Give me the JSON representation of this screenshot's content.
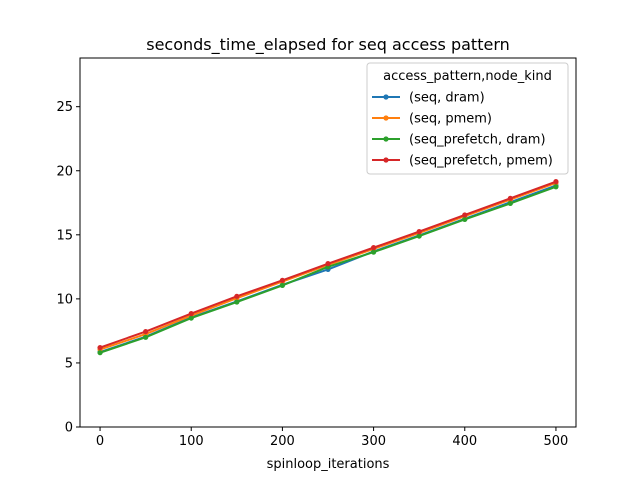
{
  "chart_data": {
    "type": "line",
    "title": "seconds_time_elapsed for seq access pattern",
    "xlabel": "spinloop_iterations",
    "ylabel": "",
    "xlim": [
      -22,
      522
    ],
    "ylim": [
      0,
      28.8
    ],
    "xticks": [
      0,
      100,
      200,
      300,
      400,
      500
    ],
    "yticks": [
      0,
      5,
      10,
      15,
      20,
      25
    ],
    "x": [
      0,
      50,
      100,
      150,
      200,
      250,
      300,
      350,
      400,
      450,
      500
    ],
    "legend": {
      "title": "access_pattern,node_kind",
      "placement": "upper right"
    },
    "series": [
      {
        "name": "(seq, dram)",
        "color": "#1f77b4",
        "values": [
          5.85,
          7.05,
          8.55,
          9.8,
          11.1,
          12.3,
          13.7,
          14.95,
          16.25,
          17.55,
          18.85
        ]
      },
      {
        "name": "(seq, pmem)",
        "color": "#ff7f0e",
        "values": [
          6.05,
          7.25,
          8.7,
          10.05,
          11.35,
          12.65,
          13.9,
          15.15,
          16.45,
          17.75,
          19.05
        ]
      },
      {
        "name": "(seq_prefetch, dram)",
        "color": "#2ca02c",
        "values": [
          5.8,
          7.0,
          8.5,
          9.75,
          11.05,
          12.5,
          13.65,
          14.9,
          16.2,
          17.45,
          18.75
        ]
      },
      {
        "name": "(seq_prefetch, pmem)",
        "color": "#d62728",
        "values": [
          6.2,
          7.45,
          8.85,
          10.2,
          11.45,
          12.75,
          14.0,
          15.25,
          16.55,
          17.85,
          19.15
        ]
      }
    ]
  }
}
